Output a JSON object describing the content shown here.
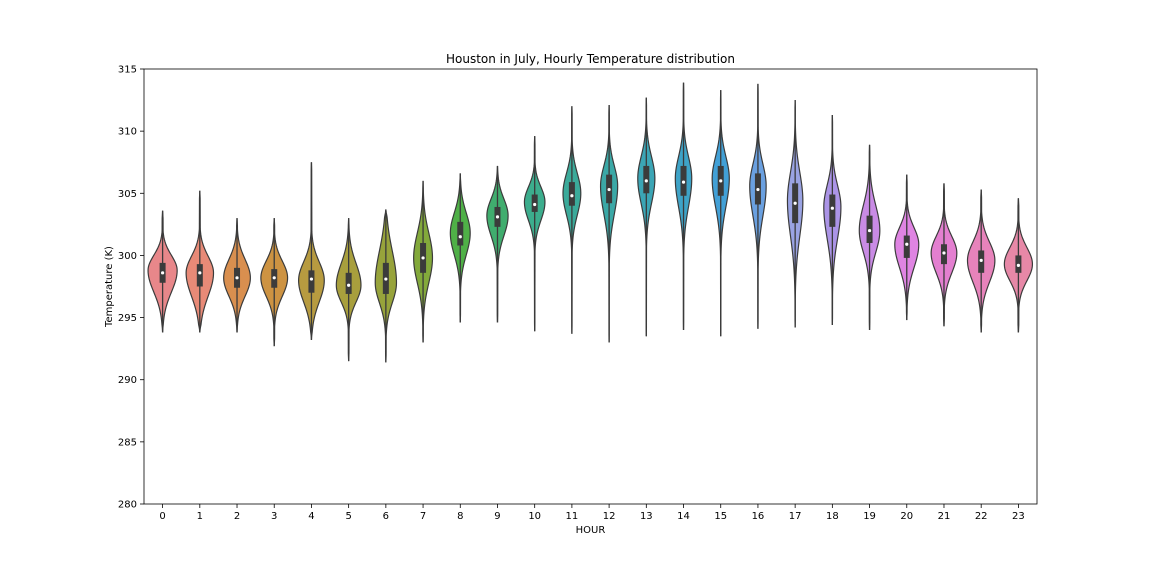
{
  "chart_data": {
    "type": "violin",
    "title": "Houston in July, Hourly Temperature distribution",
    "xlabel": "HOUR",
    "ylabel": "Temperature (K)",
    "ylim": [
      280,
      315
    ],
    "yticks": [
      280,
      285,
      290,
      295,
      300,
      305,
      310,
      315
    ],
    "grid": false,
    "legend": "none",
    "categories": [
      "0",
      "1",
      "2",
      "3",
      "4",
      "5",
      "6",
      "7",
      "8",
      "9",
      "10",
      "11",
      "12",
      "13",
      "14",
      "15",
      "16",
      "17",
      "18",
      "19",
      "20",
      "21",
      "22",
      "23"
    ],
    "colors": [
      "#e8878a",
      "#e88a77",
      "#d98f4f",
      "#cd9342",
      "#b79b40",
      "#a89f3d",
      "#97a33b",
      "#83a93b",
      "#4fb047",
      "#40ad6e",
      "#3cad8d",
      "#3baa9a",
      "#3ba8a6",
      "#3ba5b5",
      "#3ea3c7",
      "#42a0d6",
      "#6aa0e0",
      "#9aa3e3",
      "#ab94e6",
      "#c98be5",
      "#df84e2",
      "#e37fd0",
      "#e783bb",
      "#e788a7"
    ],
    "violins": [
      {
        "min": 293.8,
        "q1": 297.8,
        "median": 298.6,
        "q3": 299.4,
        "max": 303.6,
        "mode": 298.8,
        "mode_width": 0.85
      },
      {
        "min": 293.8,
        "q1": 297.5,
        "median": 298.6,
        "q3": 299.3,
        "max": 305.2,
        "mode": 298.6,
        "mode_width": 0.8
      },
      {
        "min": 293.8,
        "q1": 297.4,
        "median": 298.2,
        "q3": 299.0,
        "max": 303.0,
        "mode": 298.2,
        "mode_width": 0.78
      },
      {
        "min": 292.7,
        "q1": 297.4,
        "median": 298.2,
        "q3": 298.9,
        "max": 303.0,
        "mode": 298.2,
        "mode_width": 0.78
      },
      {
        "min": 293.2,
        "q1": 297.0,
        "median": 298.1,
        "q3": 298.8,
        "max": 307.5,
        "mode": 298.0,
        "mode_width": 0.75
      },
      {
        "min": 291.5,
        "q1": 296.9,
        "median": 297.6,
        "q3": 298.6,
        "max": 303.0,
        "mode": 297.6,
        "mode_width": 0.72
      },
      {
        "min": 291.4,
        "q1": 296.9,
        "median": 298.1,
        "q3": 299.4,
        "max": 303.7,
        "mode": 297.8,
        "mode_width": 0.62
      },
      {
        "min": 293.0,
        "q1": 298.6,
        "median": 299.8,
        "q3": 301.0,
        "max": 306.0,
        "mode": 299.8,
        "mode_width": 0.55
      },
      {
        "min": 294.6,
        "q1": 300.8,
        "median": 301.5,
        "q3": 302.7,
        "max": 306.6,
        "mode": 301.8,
        "mode_width": 0.58
      },
      {
        "min": 294.6,
        "q1": 302.3,
        "median": 303.1,
        "q3": 303.9,
        "max": 307.2,
        "mode": 303.2,
        "mode_width": 0.62
      },
      {
        "min": 293.9,
        "q1": 303.5,
        "median": 304.1,
        "q3": 304.9,
        "max": 309.6,
        "mode": 304.3,
        "mode_width": 0.6
      },
      {
        "min": 293.7,
        "q1": 304.0,
        "median": 304.8,
        "q3": 305.9,
        "max": 312.0,
        "mode": 305.0,
        "mode_width": 0.52
      },
      {
        "min": 293.0,
        "q1": 304.2,
        "median": 305.3,
        "q3": 306.5,
        "max": 312.1,
        "mode": 305.6,
        "mode_width": 0.5
      },
      {
        "min": 293.5,
        "q1": 305.0,
        "median": 306.0,
        "q3": 307.2,
        "max": 312.7,
        "mode": 306.2,
        "mode_width": 0.5
      },
      {
        "min": 294.0,
        "q1": 304.8,
        "median": 305.9,
        "q3": 307.2,
        "max": 313.9,
        "mode": 306.2,
        "mode_width": 0.48
      },
      {
        "min": 293.5,
        "q1": 304.8,
        "median": 306.0,
        "q3": 307.2,
        "max": 313.3,
        "mode": 306.2,
        "mode_width": 0.5
      },
      {
        "min": 294.1,
        "q1": 304.1,
        "median": 305.3,
        "q3": 306.6,
        "max": 313.8,
        "mode": 305.6,
        "mode_width": 0.48
      },
      {
        "min": 294.2,
        "q1": 302.6,
        "median": 304.2,
        "q3": 305.8,
        "max": 312.5,
        "mode": 304.4,
        "mode_width": 0.45
      },
      {
        "min": 294.4,
        "q1": 302.3,
        "median": 303.8,
        "q3": 304.9,
        "max": 311.3,
        "mode": 303.9,
        "mode_width": 0.5
      },
      {
        "min": 294.0,
        "q1": 301.0,
        "median": 302.0,
        "q3": 303.2,
        "max": 308.9,
        "mode": 302.0,
        "mode_width": 0.6
      },
      {
        "min": 294.8,
        "q1": 299.8,
        "median": 300.9,
        "q3": 301.6,
        "max": 306.5,
        "mode": 300.9,
        "mode_width": 0.7
      },
      {
        "min": 294.3,
        "q1": 299.3,
        "median": 300.2,
        "q3": 300.9,
        "max": 305.8,
        "mode": 300.2,
        "mode_width": 0.75
      },
      {
        "min": 293.8,
        "q1": 298.6,
        "median": 299.6,
        "q3": 300.4,
        "max": 305.3,
        "mode": 299.6,
        "mode_width": 0.8
      },
      {
        "min": 293.8,
        "q1": 298.6,
        "median": 299.2,
        "q3": 300.0,
        "max": 304.6,
        "mode": 299.3,
        "mode_width": 0.82
      }
    ]
  }
}
